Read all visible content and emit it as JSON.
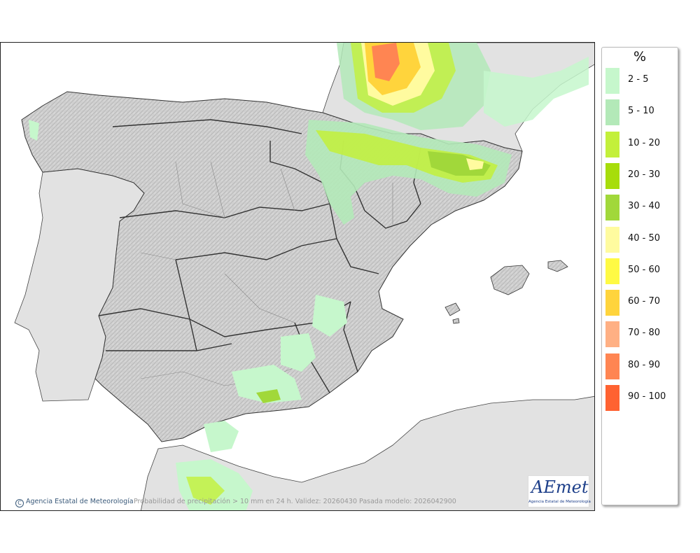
{
  "legend": {
    "title": "%",
    "classes": [
      {
        "label": "2 - 5",
        "color": "#c6f7cc"
      },
      {
        "label": "5 - 10",
        "color": "#b3e9b8"
      },
      {
        "label": "10 - 20",
        "color": "#c3f03a"
      },
      {
        "label": "20 - 30",
        "color": "#a7dd0b"
      },
      {
        "label": "30 - 40",
        "color": "#a1d83a"
      },
      {
        "label": "40 - 50",
        "color": "#fffb9f"
      },
      {
        "label": "50 - 60",
        "color": "#fffa44"
      },
      {
        "label": "60 - 70",
        "color": "#ffd43c"
      },
      {
        "label": "70 - 80",
        "color": "#ffb084"
      },
      {
        "label": "80 - 90",
        "color": "#ff8552"
      },
      {
        "label": "90 - 100",
        "color": "#ff6231"
      }
    ]
  },
  "footer": {
    "copyright_symbol": "C",
    "agency": "Agencia Estatal de Meteorología",
    "caption": "Probabilidad de precipitación > 10 mm en 24 h. Validez: 20260430 Pasada modelo: 2026042900"
  },
  "logo": {
    "wordmark": "AEmet",
    "subtitle": "Agencia Estatal de Meteorología"
  },
  "colors": {
    "land_relief": "#cfcfcf",
    "other_land": "#e2e2e2",
    "sea": "#ffffff",
    "boundary": "#333333"
  }
}
